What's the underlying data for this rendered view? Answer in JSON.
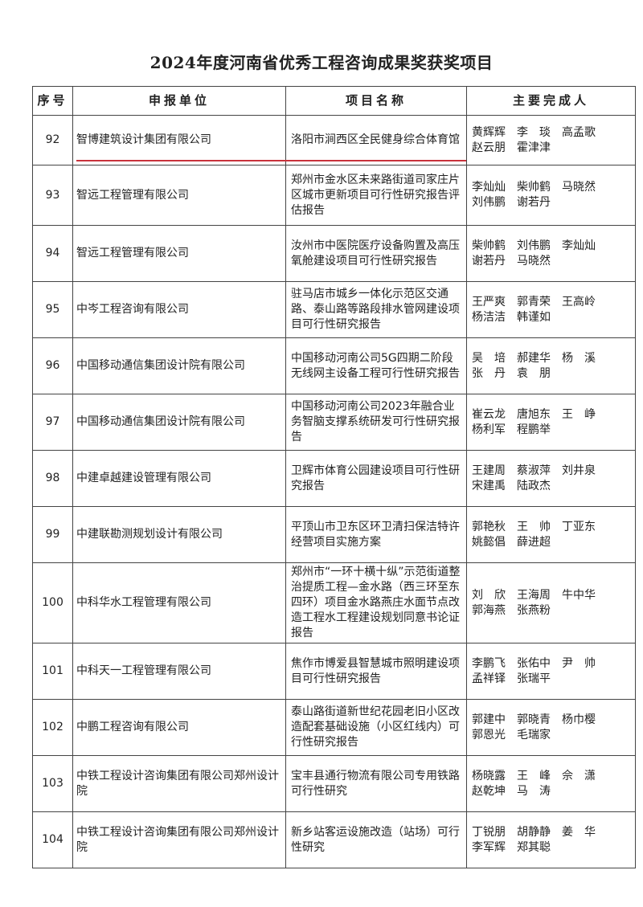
{
  "title": "2024年度河南省优秀工程咨询成果奖获奖项目",
  "headers": [
    "序号",
    "申报单位",
    "项目名称",
    "主要完成人"
  ],
  "accent_color": "#c8323c",
  "rows": [
    {
      "seq": "92",
      "unit": "智博建筑设计集团有限公司",
      "project": "洛阳市涧西区全民健身综合体育馆",
      "people": "黄辉辉　李　琰　高孟歌\n赵云朋　霍津津"
    },
    {
      "seq": "93",
      "unit": "智远工程管理有限公司",
      "project": "郑州市金水区未来路街道司家庄片区城市更新项目可行性研究报告评估报告",
      "people": "李灿灿　柴帅鹤　马晓然\n刘伟鹏　谢若丹"
    },
    {
      "seq": "94",
      "unit": "智远工程管理有限公司",
      "project": "汝州市中医院医疗设备购置及高压氧舱建设项目可行性研究报告",
      "people": "柴帅鹤　刘伟鹏　李灿灿\n谢若丹　马晓然"
    },
    {
      "seq": "95",
      "unit": "中岑工程咨询有限公司",
      "project": "驻马店市城乡一体化示范区交通路、泰山路等路段排水管网建设项目可行性研究报告",
      "people": "王严爽　郭青荣　王高岭\n杨洁洁　韩谨如"
    },
    {
      "seq": "96",
      "unit": "中国移动通信集团设计院有限公司",
      "project": "中国移动河南公司5G四期二阶段无线网主设备工程可行性研究报告",
      "people": "吴　培　郝建华　杨　溪\n张　丹　袁　朋"
    },
    {
      "seq": "97",
      "unit": "中国移动通信集团设计院有限公司",
      "project": "中国移动河南公司2023年融合业务智脑支撑系统研发可行性研究报告",
      "people": "崔云龙　唐旭东　王　峥\n杨利军　程鹏举"
    },
    {
      "seq": "98",
      "unit": "中建卓越建设管理有限公司",
      "project": "卫辉市体育公园建设项目可行性研究报告",
      "people": "王建周　蔡淑萍　刘井泉\n宋建禹　陆政杰"
    },
    {
      "seq": "99",
      "unit": "中建联勘测规划设计有限公司",
      "project": "平顶山市卫东区环卫清扫保洁特许经营项目实施方案",
      "people": "郭艳秋　王　帅　丁亚东\n姚懿倡　薛进超"
    },
    {
      "seq": "100",
      "unit": "中科华水工程管理有限公司",
      "project": "郑州市“一环十横十纵”示范街道整治提质工程—金水路（西三环至东四环）项目金水路燕庄水面节点改造工程水工程建设规划同意书论证报告",
      "people": "刘　欣　王海周　牛中华\n郭海燕　张燕粉"
    },
    {
      "seq": "101",
      "unit": "中科天一工程管理有限公司",
      "project": "焦作市博爱县智慧城市照明建设项目可行性研究报告",
      "people": "李鹏飞　张佑中　尹　帅\n孟祥铎　张瑞平"
    },
    {
      "seq": "102",
      "unit": "中鹏工程咨询有限公司",
      "project": "泰山路街道新世纪花园老旧小区改造配套基础设施（小区红线内）可行性研究报告",
      "people": "郭建中　郭晓青　杨巾樱\n郭恩光　毛瑞家"
    },
    {
      "seq": "103",
      "unit": "中铁工程设计咨询集团有限公司郑州设计院",
      "project": "宝丰县通行物流有限公司专用铁路可行性研究",
      "people": "杨晓露　王　峰　佘　潇\n赵乾坤　马　涛"
    },
    {
      "seq": "104",
      "unit": "中铁工程设计咨询集团有限公司郑州设计院",
      "project": "新乡站客运设施改造（站场）可行性研究",
      "people": "丁锐朋　胡静静　姜　华\n李军辉　郑其聪"
    }
  ]
}
